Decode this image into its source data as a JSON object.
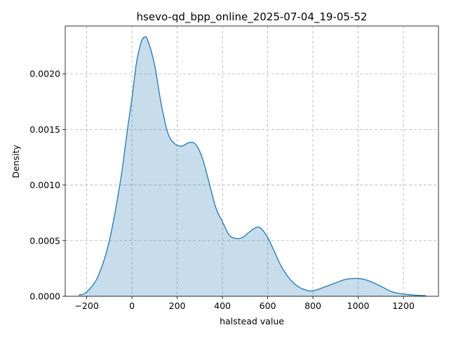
{
  "chart_data": {
    "type": "area",
    "title": "hsevo-qd_bpp_online_2025-07-04_19-05-52",
    "xlabel": "halstead value",
    "ylabel": "Density",
    "xlim": [
      -295,
      1355
    ],
    "ylim": [
      0,
      0.00243
    ],
    "x_ticks": [
      -200,
      0,
      200,
      400,
      600,
      800,
      1000,
      1200
    ],
    "x_tick_labels": [
      "−200",
      "0",
      "200",
      "400",
      "600",
      "800",
      "1000",
      "1200"
    ],
    "y_ticks": [
      0,
      0.0005,
      0.001,
      0.0015,
      0.002
    ],
    "y_tick_labels": [
      "0.0000",
      "0.0005",
      "0.0010",
      "0.0015",
      "0.0020"
    ],
    "grid": true,
    "series": [
      {
        "color": "#1f77b4",
        "fill_color": "#1f77b4",
        "fill_opacity": 0.25,
        "x": [
          -235,
          -200,
          -150,
          -100,
          -50,
          -20,
          0,
          20,
          40,
          55,
          70,
          100,
          130,
          160,
          190,
          220,
          250,
          280,
          310,
          340,
          370,
          400,
          430,
          460,
          490,
          520,
          550,
          570,
          600,
          630,
          660,
          700,
          740,
          780,
          800,
          820,
          860,
          900,
          940,
          980,
          1000,
          1030,
          1070,
          1110,
          1150,
          1200,
          1250,
          1300
        ],
        "y": [
          1e-05,
          4e-05,
          0.00018,
          0.0005,
          0.00105,
          0.0015,
          0.00178,
          0.0021,
          0.00228,
          0.00233,
          0.0023,
          0.00208,
          0.00172,
          0.00146,
          0.00137,
          0.00135,
          0.00138,
          0.00137,
          0.00125,
          0.00103,
          0.0008,
          0.00067,
          0.00055,
          0.00052,
          0.00053,
          0.00058,
          0.00062,
          0.00061,
          0.00053,
          0.0004,
          0.00027,
          0.00015,
          8e-05,
          5e-05,
          5e-05,
          6e-05,
          9e-05,
          0.00012,
          0.00015,
          0.00016,
          0.00016,
          0.00015,
          0.00012,
          8e-05,
          4e-05,
          2e-05,
          1e-05,
          5e-06
        ]
      }
    ]
  }
}
